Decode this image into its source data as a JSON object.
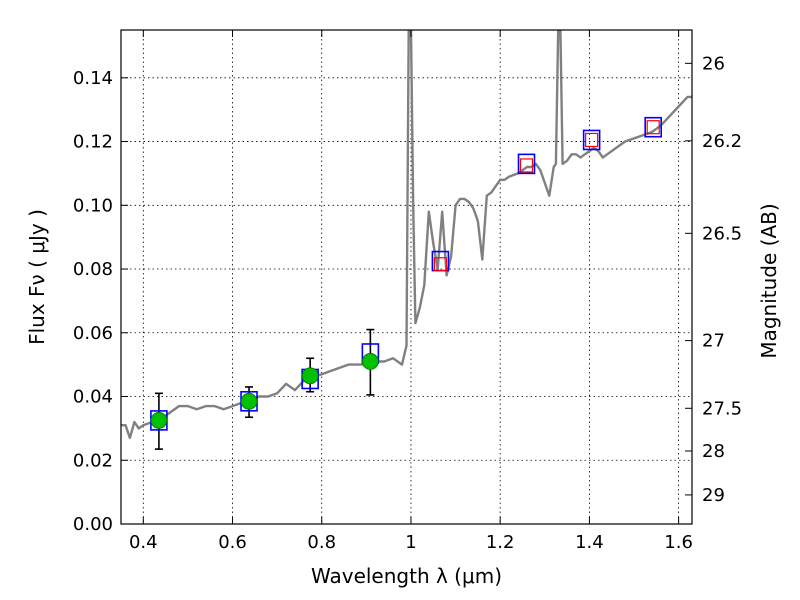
{
  "chart_data": {
    "type": "line",
    "xlabel": "Wavelength  λ (μm)",
    "ylabel": "Flux  Fν  ( μJy )",
    "y2label": "Magnitude (AB)",
    "xlim": [
      0.35,
      1.63
    ],
    "ylim": [
      0.0,
      0.155
    ],
    "grid": true,
    "x_ticks": [
      "0.4",
      "0.6",
      "0.8",
      "1",
      "1.2",
      "1.4",
      "1.6"
    ],
    "y_ticks": [
      "0.00",
      "0.02",
      "0.04",
      "0.06",
      "0.08",
      "0.10",
      "0.12",
      "0.14"
    ],
    "mag_ticks": [
      "26",
      "26.2",
      "26.5",
      "27",
      "27.5",
      "28",
      "29"
    ],
    "series": [
      {
        "kind": "model_spectrum",
        "color": "#808080",
        "x": [
          0.35,
          0.36,
          0.37,
          0.38,
          0.39,
          0.4,
          0.42,
          0.44,
          0.46,
          0.48,
          0.5,
          0.52,
          0.54,
          0.56,
          0.58,
          0.6,
          0.62,
          0.64,
          0.66,
          0.68,
          0.7,
          0.72,
          0.74,
          0.76,
          0.78,
          0.8,
          0.82,
          0.84,
          0.86,
          0.88,
          0.9,
          0.92,
          0.94,
          0.96,
          0.98,
          0.99,
          0.995,
          1.0,
          1.005,
          1.01,
          1.02,
          1.03,
          1.04,
          1.05,
          1.06,
          1.07,
          1.08,
          1.09,
          1.1,
          1.11,
          1.12,
          1.13,
          1.14,
          1.15,
          1.16,
          1.17,
          1.18,
          1.19,
          1.2,
          1.21,
          1.22,
          1.24,
          1.25,
          1.26,
          1.27,
          1.28,
          1.29,
          1.3,
          1.31,
          1.32,
          1.325,
          1.33,
          1.335,
          1.34,
          1.35,
          1.36,
          1.37,
          1.38,
          1.39,
          1.4,
          1.41,
          1.42,
          1.43,
          1.44,
          1.46,
          1.48,
          1.5,
          1.52,
          1.54,
          1.56,
          1.58,
          1.6,
          1.62,
          1.63
        ],
        "y": [
          0.031,
          0.031,
          0.027,
          0.032,
          0.03,
          0.031,
          0.032,
          0.033,
          0.035,
          0.037,
          0.037,
          0.036,
          0.037,
          0.037,
          0.036,
          0.037,
          0.038,
          0.039,
          0.04,
          0.04,
          0.041,
          0.044,
          0.042,
          0.045,
          0.046,
          0.047,
          0.048,
          0.049,
          0.05,
          0.05,
          0.05,
          0.051,
          0.051,
          0.052,
          0.05,
          0.056,
          0.155,
          0.155,
          0.1,
          0.063,
          0.068,
          0.075,
          0.098,
          0.088,
          0.08,
          0.098,
          0.078,
          0.084,
          0.1,
          0.102,
          0.102,
          0.101,
          0.099,
          0.095,
          0.083,
          0.103,
          0.104,
          0.106,
          0.108,
          0.108,
          0.109,
          0.11,
          0.111,
          0.112,
          0.112,
          0.113,
          0.111,
          0.107,
          0.103,
          0.112,
          0.113,
          0.155,
          0.155,
          0.113,
          0.114,
          0.116,
          0.116,
          0.115,
          0.116,
          0.117,
          0.118,
          0.117,
          0.115,
          0.116,
          0.118,
          0.12,
          0.121,
          0.122,
          0.123,
          0.125,
          0.128,
          0.131,
          0.134,
          0.134
        ]
      },
      {
        "kind": "measured_photometry",
        "marker": "green_circle_with_errorbars",
        "color": "#00c000",
        "x": [
          0.435,
          0.637,
          0.774,
          0.909
        ],
        "y": [
          0.0325,
          0.0385,
          0.0465,
          0.051
        ],
        "yerr_low": [
          0.0235,
          0.0335,
          0.0415,
          0.0405
        ],
        "yerr_high": [
          0.041,
          0.043,
          0.052,
          0.061
        ]
      },
      {
        "kind": "model_photometry",
        "marker": "blue_open_square",
        "color": "#0000ff",
        "x": [
          0.435,
          0.637,
          0.774,
          0.909,
          1.066,
          1.259,
          1.405,
          1.543
        ],
        "y": [
          0.0325,
          0.0385,
          0.0455,
          0.0535,
          0.0825,
          0.113,
          0.1205,
          0.1245
        ]
      },
      {
        "kind": "model_photometry_ir",
        "marker": "red_open_square",
        "color": "#ff0000",
        "x": [
          1.066,
          1.259,
          1.405,
          1.543
        ],
        "y": [
          0.0815,
          0.1125,
          0.1205,
          0.1245
        ]
      }
    ]
  }
}
